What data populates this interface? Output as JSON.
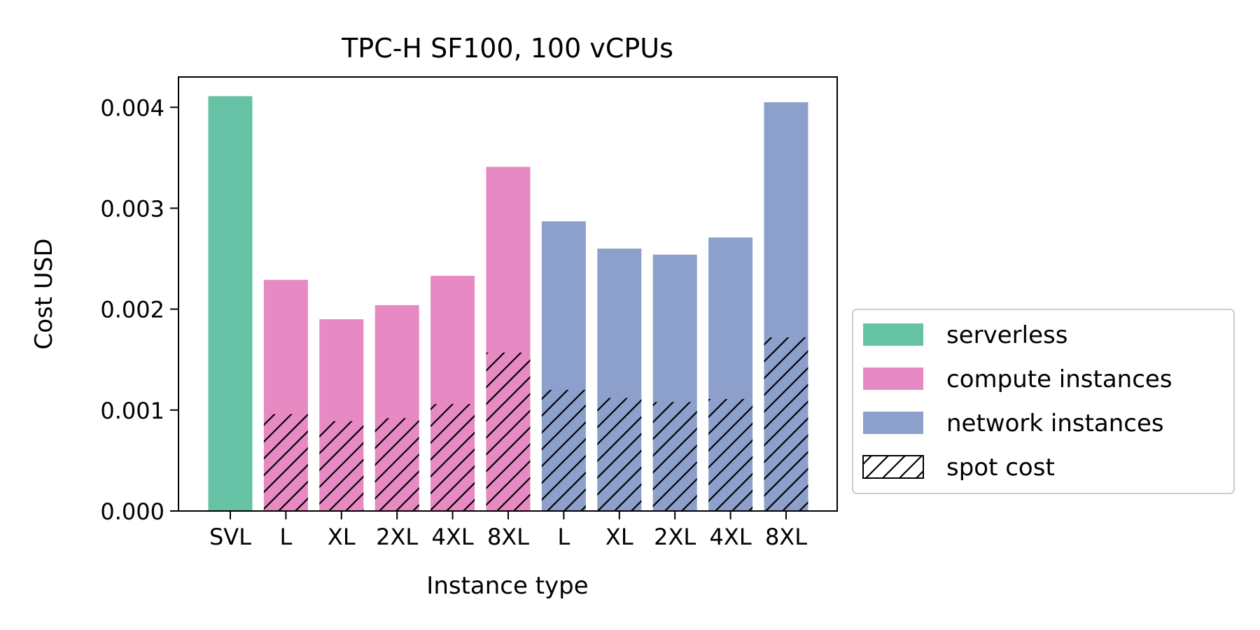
{
  "chart_data": {
    "type": "bar",
    "title": "TPC-H SF100, 100 vCPUs",
    "xlabel": "Instance type",
    "ylabel": "Cost USD",
    "ylim": [
      0,
      0.0043
    ],
    "yticks": [
      "0.000",
      "0.001",
      "0.002",
      "0.003",
      "0.004"
    ],
    "grid": false,
    "legend_position": "right",
    "categories": [
      "SVL",
      "L",
      "XL",
      "2XL",
      "4XL",
      "8XL",
      "L",
      "XL",
      "2XL",
      "4XL",
      "8XL"
    ],
    "groups": [
      "serverless",
      "compute",
      "compute",
      "compute",
      "compute",
      "compute",
      "network",
      "network",
      "network",
      "network",
      "network"
    ],
    "values": [
      0.00411,
      0.00229,
      0.0019,
      0.00204,
      0.00233,
      0.00341,
      0.00287,
      0.0026,
      0.00254,
      0.00271,
      0.00405
    ],
    "spot_values": [
      null,
      0.00096,
      0.00089,
      0.00092,
      0.00106,
      0.00157,
      0.0012,
      0.00112,
      0.00108,
      0.00111,
      0.00172
    ],
    "legend": [
      {
        "key": "serverless",
        "label": "serverless",
        "color": "#66c2a5"
      },
      {
        "key": "compute",
        "label": "compute instances",
        "color": "#e78ac3"
      },
      {
        "key": "network",
        "label": "network instances",
        "color": "#8da0cb"
      },
      {
        "key": "spot",
        "label": "spot cost",
        "color": "hatch"
      }
    ]
  }
}
